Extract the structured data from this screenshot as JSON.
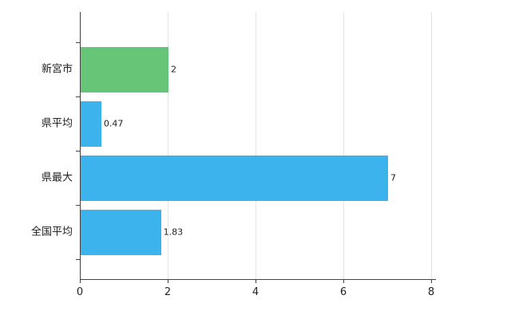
{
  "chart_data": {
    "type": "bar",
    "orientation": "horizontal",
    "title": "",
    "categories": [
      "新宮市",
      "県平均",
      "県最大",
      "全国平均"
    ],
    "values": [
      2,
      0.47,
      7,
      1.83
    ],
    "value_labels": [
      "2",
      "0.47",
      "7",
      "1.83"
    ],
    "series": [
      {
        "name": "value",
        "values": [
          2,
          0.47,
          7,
          1.83
        ]
      }
    ],
    "bar_colors": [
      "#67c577",
      "#3db3ee",
      "#3db3ee",
      "#3db3ee"
    ],
    "xlabel": "",
    "ylabel": "",
    "xlim": [
      0,
      8
    ],
    "x_ticks": [
      "0",
      "2",
      "4",
      "6",
      "8"
    ],
    "x_tick_values": [
      0,
      2,
      4,
      6,
      8
    ],
    "grid": true,
    "legend_position": "none",
    "background_color": "#ffffff",
    "axis_color": "#444444",
    "grid_color": "#e4e4e4",
    "label_color": "#222222"
  }
}
